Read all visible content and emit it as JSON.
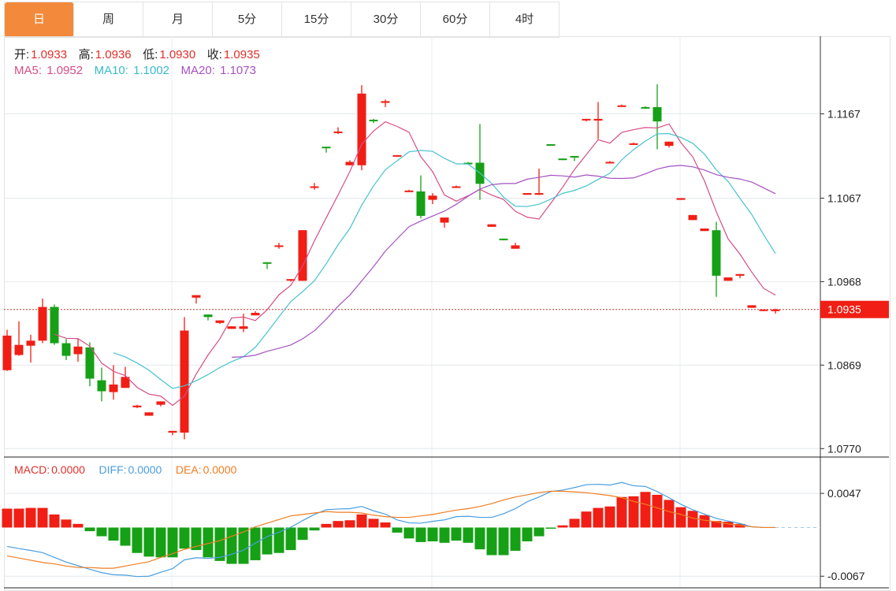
{
  "tabs": [
    {
      "label": "日",
      "active": true
    },
    {
      "label": "周"
    },
    {
      "label": "月"
    },
    {
      "label": "5分"
    },
    {
      "label": "15分"
    },
    {
      "label": "30分"
    },
    {
      "label": "60分"
    },
    {
      "label": "4时"
    }
  ],
  "ohlc_legend": {
    "open_label": "开:",
    "open": "1.0933",
    "high_label": "高:",
    "high": "1.0936",
    "low_label": "低:",
    "low": "1.0930",
    "close_label": "收:",
    "close": "1.0935"
  },
  "ma_legend": {
    "ma5_label": "MA5:",
    "ma5": "1.0952",
    "ma10_label": "MA10:",
    "ma10": "1.1002",
    "ma20_label": "MA20:",
    "ma20": "1.1073"
  },
  "macd_legend": {
    "macd_label": "MACD:",
    "macd": "0.0000",
    "diff_label": "DIFF:",
    "diff": "0.0000",
    "dea_label": "DEA:",
    "dea": "0.0000"
  },
  "colors": {
    "up": "#f01e14",
    "down": "#16a016",
    "ma5": "#d64d86",
    "ma10": "#46c3cf",
    "ma20": "#a452c2",
    "diff": "#4a9ee0",
    "dea": "#ef7d22",
    "accent": "#f2893b",
    "last_price_tag": "#f01e14"
  },
  "chart_data": [
    {
      "type": "candlestick",
      "ylim": [
        1.076,
        1.1259
      ],
      "yticks": [
        "1.1167",
        "1.1067",
        "1.0968",
        "1.0869",
        "1.0770"
      ],
      "last_price": "1.0935",
      "up_color_meaning": "red = up, green = down",
      "candles": [
        [
          1.0863,
          1.0911,
          1.0862,
          1.0904
        ],
        [
          1.0881,
          1.0921,
          1.088,
          1.0893
        ],
        [
          1.0892,
          1.0905,
          1.0872,
          1.0898
        ],
        [
          1.0898,
          1.0948,
          1.0895,
          1.0938
        ],
        [
          1.0938,
          1.0941,
          1.0893,
          1.0895
        ],
        [
          1.0895,
          1.09,
          1.0875,
          1.088
        ],
        [
          1.0882,
          1.09,
          1.0873,
          1.0891
        ],
        [
          1.089,
          1.0896,
          1.0844,
          1.0853
        ],
        [
          1.0851,
          1.0866,
          1.0826,
          1.0838
        ],
        [
          1.0837,
          1.0869,
          1.0828,
          1.0846
        ],
        [
          1.0842,
          1.0867,
          1.0842,
          1.0855
        ],
        [
          1.0819,
          1.0822,
          1.0818,
          1.0821
        ],
        [
          1.0809,
          1.0813,
          1.0809,
          1.0813
        ],
        [
          1.0822,
          1.0826,
          1.082,
          1.0826
        ],
        [
          1.0789,
          1.0791,
          1.0786,
          1.0791
        ],
        [
          1.0789,
          1.0926,
          1.0781,
          1.091
        ],
        [
          1.0949,
          1.0952,
          1.0942,
          1.0952
        ],
        [
          1.0929,
          1.0929,
          1.0922,
          1.0926
        ],
        [
          1.0919,
          1.0922,
          1.0918,
          1.0922
        ],
        [
          1.0912,
          1.0915,
          1.0912,
          1.0915
        ],
        [
          1.0912,
          1.093,
          1.0908,
          1.0915
        ],
        [
          1.0928,
          1.0933,
          1.0928,
          1.0931
        ],
        [
          1.0991,
          1.0991,
          1.0983,
          1.099
        ],
        [
          1.101,
          1.1014,
          1.1007,
          1.1011
        ],
        [
          1.097,
          1.0971,
          1.0968,
          1.0971
        ],
        [
          1.0969,
          1.1029,
          1.0969,
          1.1029
        ],
        [
          1.108,
          1.1085,
          1.1077,
          1.1081
        ],
        [
          1.1128,
          1.1128,
          1.1121,
          1.1127
        ],
        [
          1.1145,
          1.1151,
          1.1143,
          1.1146
        ],
        [
          1.1106,
          1.1112,
          1.1106,
          1.111
        ],
        [
          1.1106,
          1.1201,
          1.11,
          1.1191
        ],
        [
          1.116,
          1.1161,
          1.1156,
          1.1159
        ],
        [
          1.118,
          1.1184,
          1.1175,
          1.1182
        ],
        [
          1.1117,
          1.1118,
          1.1117,
          1.1118
        ],
        [
          1.1075,
          1.1077,
          1.1075,
          1.1076
        ],
        [
          1.1075,
          1.1094,
          1.1043,
          1.1046
        ],
        [
          1.1065,
          1.1073,
          1.106,
          1.107
        ],
        [
          1.1038,
          1.1044,
          1.1032,
          1.1044
        ],
        [
          1.108,
          1.1082,
          1.1079,
          1.1081
        ],
        [
          1.1109,
          1.111,
          1.1107,
          1.1108
        ],
        [
          1.1109,
          1.1155,
          1.1065,
          1.1084
        ],
        [
          1.1033,
          1.1036,
          1.1033,
          1.1036
        ],
        [
          1.1019,
          1.1019,
          1.1017,
          1.1018
        ],
        [
          1.1007,
          1.1014,
          1.1007,
          1.1011
        ],
        [
          1.1071,
          1.1073,
          1.1071,
          1.1073
        ],
        [
          1.1071,
          1.1102,
          1.1071,
          1.1073
        ],
        [
          1.1131,
          1.1131,
          1.113,
          1.113
        ],
        [
          1.1114,
          1.1114,
          1.1112,
          1.1113
        ],
        [
          1.1117,
          1.1117,
          1.1111,
          1.1116
        ],
        [
          1.116,
          1.1161,
          1.1158,
          1.1161
        ],
        [
          1.1159,
          1.1181,
          1.1137,
          1.1161
        ],
        [
          1.1109,
          1.1111,
          1.1109,
          1.111
        ],
        [
          1.1176,
          1.1178,
          1.1176,
          1.1177
        ],
        [
          1.1131,
          1.1133,
          1.1131,
          1.1132
        ],
        [
          1.1175,
          1.1176,
          1.1173,
          1.1174
        ],
        [
          1.1175,
          1.1202,
          1.1125,
          1.1158
        ],
        [
          1.1129,
          1.1134,
          1.1127,
          1.1134
        ],
        [
          1.1065,
          1.1067,
          1.1065,
          1.1067
        ],
        [
          1.1041,
          1.1047,
          1.1041,
          1.1047
        ],
        [
          1.1028,
          1.1031,
          1.1028,
          1.1031
        ],
        [
          1.1029,
          1.1039,
          1.095,
          1.0975
        ],
        [
          1.0969,
          1.0973,
          1.0969,
          1.0973
        ],
        [
          1.0975,
          1.0977,
          1.0972,
          1.0977
        ],
        [
          1.0937,
          1.094,
          1.0937,
          1.094
        ],
        [
          1.0934,
          1.0935,
          1.0933,
          1.0935
        ],
        [
          1.0933,
          1.0936,
          1.093,
          1.0935
        ]
      ],
      "moving_averages": [
        {
          "name": "MA5",
          "period": 5
        },
        {
          "name": "MA10",
          "period": 10
        },
        {
          "name": "MA20",
          "period": 20
        }
      ]
    },
    {
      "type": "bar+line",
      "ylim": [
        -0.0083,
        0.0097
      ],
      "yticks": [
        "0.0047",
        "-0.0067"
      ],
      "macd_histogram": [
        0.0026,
        0.0026,
        0.0027,
        0.0027,
        0.0018,
        0.0011,
        0.0005,
        -0.0005,
        -0.0012,
        -0.0018,
        -0.0025,
        -0.0035,
        -0.004,
        -0.0041,
        -0.0041,
        -0.0029,
        -0.0031,
        -0.0041,
        -0.0046,
        -0.005,
        -0.005,
        -0.0045,
        -0.0037,
        -0.0035,
        -0.0031,
        -0.0017,
        -0.0004,
        0.0005,
        0.0009,
        0.001,
        0.0018,
        0.0012,
        0.0007,
        -0.0007,
        -0.0015,
        -0.002,
        -0.0019,
        -0.0021,
        -0.0018,
        -0.0021,
        -0.003,
        -0.0038,
        -0.0038,
        -0.0032,
        -0.0019,
        -0.0012,
        -0.0001,
        0.0003,
        0.0012,
        0.0022,
        0.0027,
        0.0029,
        0.0042,
        0.0043,
        0.0049,
        0.0045,
        0.0038,
        0.0028,
        0.0023,
        0.0017,
        0.0009,
        0.0008,
        0.0005,
        0,
        0,
        0
      ],
      "dea": [
        -0.0039,
        -0.0042,
        -0.0045,
        -0.0048,
        -0.005,
        -0.0053,
        -0.0055,
        -0.0055,
        -0.0056,
        -0.0056,
        -0.0053,
        -0.005,
        -0.0047,
        -0.0041,
        -0.0036,
        -0.003,
        -0.0026,
        -0.0022,
        -0.0018,
        -0.0012,
        -0.0006,
        0.0001,
        0.0006,
        0.0011,
        0.0016,
        0.0018,
        0.002,
        0.0022,
        0.0021,
        0.0021,
        0.002,
        0.0017,
        0.0015,
        0.0014,
        0.0014,
        0.0016,
        0.0018,
        0.0021,
        0.0024,
        0.0026,
        0.0029,
        0.0033,
        0.0038,
        0.0042,
        0.0045,
        0.0048,
        0.005,
        0.005,
        0.0049,
        0.0048,
        0.0046,
        0.0044,
        0.0041,
        0.0036,
        0.0032,
        0.0027,
        0.0022,
        0.0018,
        0.0013,
        0.001,
        0.0008,
        0.0005,
        0.0003,
        0.0001,
        0,
        0
      ]
    }
  ]
}
